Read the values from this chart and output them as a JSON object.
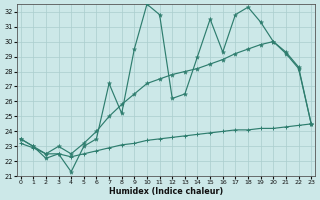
{
  "xlabel": "Humidex (Indice chaleur)",
  "x": [
    0,
    1,
    2,
    3,
    4,
    5,
    6,
    7,
    8,
    9,
    10,
    11,
    12,
    13,
    14,
    15,
    16,
    17,
    18,
    19,
    20,
    21,
    22,
    23
  ],
  "jagged": [
    23.5,
    23.0,
    22.2,
    22.5,
    21.3,
    23.0,
    23.5,
    27.2,
    25.2,
    29.5,
    32.5,
    31.8,
    26.2,
    26.5,
    29.0,
    31.5,
    29.3,
    31.8,
    32.3,
    31.3,
    30.0,
    29.3,
    28.3,
    24.5
  ],
  "smooth_hill": [
    23.5,
    23.0,
    22.5,
    23.0,
    22.5,
    23.2,
    24.0,
    25.0,
    25.8,
    26.5,
    27.2,
    27.5,
    27.8,
    28.0,
    28.2,
    28.5,
    28.8,
    29.2,
    29.5,
    29.8,
    30.0,
    29.2,
    28.2,
    24.5
  ],
  "flat_rise": [
    23.2,
    22.9,
    22.5,
    22.5,
    22.3,
    22.5,
    22.7,
    22.9,
    23.1,
    23.2,
    23.4,
    23.5,
    23.6,
    23.7,
    23.8,
    23.9,
    24.0,
    24.1,
    24.1,
    24.2,
    24.2,
    24.3,
    24.4,
    24.5
  ],
  "color": "#2e7d6e",
  "bg_color": "#cce8e8",
  "grid_color": "#aacece",
  "ylim": [
    21,
    32.5
  ],
  "xlim": [
    -0.3,
    23.3
  ],
  "yticks": [
    21,
    22,
    23,
    24,
    25,
    26,
    27,
    28,
    29,
    30,
    31,
    32
  ],
  "xticks": [
    0,
    1,
    2,
    3,
    4,
    5,
    6,
    7,
    8,
    9,
    10,
    11,
    12,
    13,
    14,
    15,
    16,
    17,
    18,
    19,
    20,
    21,
    22,
    23
  ],
  "xtick_labels": [
    "0",
    "1",
    "2",
    "3",
    "4",
    "5",
    "6",
    "7",
    "8",
    "9",
    "10",
    "11",
    "12",
    "13",
    "14",
    "15",
    "16",
    "17",
    "18",
    "19",
    "20",
    "21",
    "22",
    "23"
  ]
}
